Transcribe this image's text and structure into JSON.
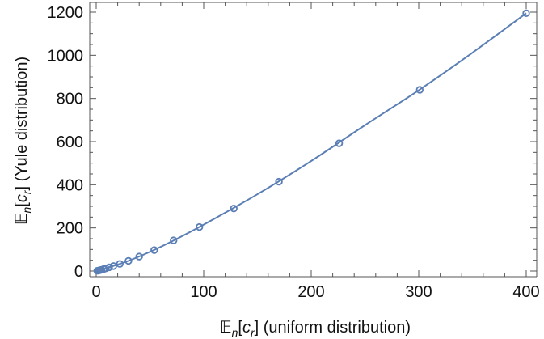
{
  "chart_data": {
    "type": "scatter",
    "xlabel": {
      "main": "𝔼",
      "sub_n": "n",
      "open": "[",
      "c": "c",
      "sub_r": "r",
      "close": "]",
      "rest": " (uniform distribution)"
    },
    "ylabel": {
      "main": "𝔼",
      "sub_n": "n",
      "open": "[",
      "c": "c",
      "sub_r": "r",
      "close": "]",
      "rest": " (Yule distribution)"
    },
    "xlim": [
      0,
      400
    ],
    "ylim": [
      0,
      1200
    ],
    "x_ticks": [
      0,
      100,
      200,
      300,
      400
    ],
    "y_ticks": [
      0,
      200,
      400,
      600,
      800,
      1000,
      1200
    ],
    "grid": false,
    "colors": {
      "series": "#5b7fb5",
      "axis": "#555555"
    },
    "series": [
      {
        "marker": "open-circle",
        "points": [
          {
            "x": 1,
            "y": 1
          },
          {
            "x": 2,
            "y": 2
          },
          {
            "x": 3,
            "y": 3
          },
          {
            "x": 4,
            "y": 5
          },
          {
            "x": 5,
            "y": 6
          },
          {
            "x": 7,
            "y": 9
          },
          {
            "x": 9,
            "y": 12
          },
          {
            "x": 12,
            "y": 17
          },
          {
            "x": 16,
            "y": 23
          },
          {
            "x": 22,
            "y": 33
          },
          {
            "x": 30,
            "y": 47
          },
          {
            "x": 40,
            "y": 67
          },
          {
            "x": 54,
            "y": 97
          },
          {
            "x": 72,
            "y": 142
          },
          {
            "x": 96,
            "y": 204
          },
          {
            "x": 128,
            "y": 290
          },
          {
            "x": 170,
            "y": 414
          },
          {
            "x": 226,
            "y": 592
          },
          {
            "x": 301,
            "y": 840
          },
          {
            "x": 400,
            "y": 1195
          }
        ]
      }
    ],
    "curve": {
      "points": [
        {
          "x": 0,
          "y": 0
        },
        {
          "x": 25,
          "y": 38
        },
        {
          "x": 50,
          "y": 89
        },
        {
          "x": 75,
          "y": 149
        },
        {
          "x": 100,
          "y": 215
        },
        {
          "x": 150,
          "y": 356
        },
        {
          "x": 200,
          "y": 510
        },
        {
          "x": 250,
          "y": 676
        },
        {
          "x": 300,
          "y": 838
        },
        {
          "x": 350,
          "y": 1012
        },
        {
          "x": 400,
          "y": 1195
        }
      ]
    }
  }
}
